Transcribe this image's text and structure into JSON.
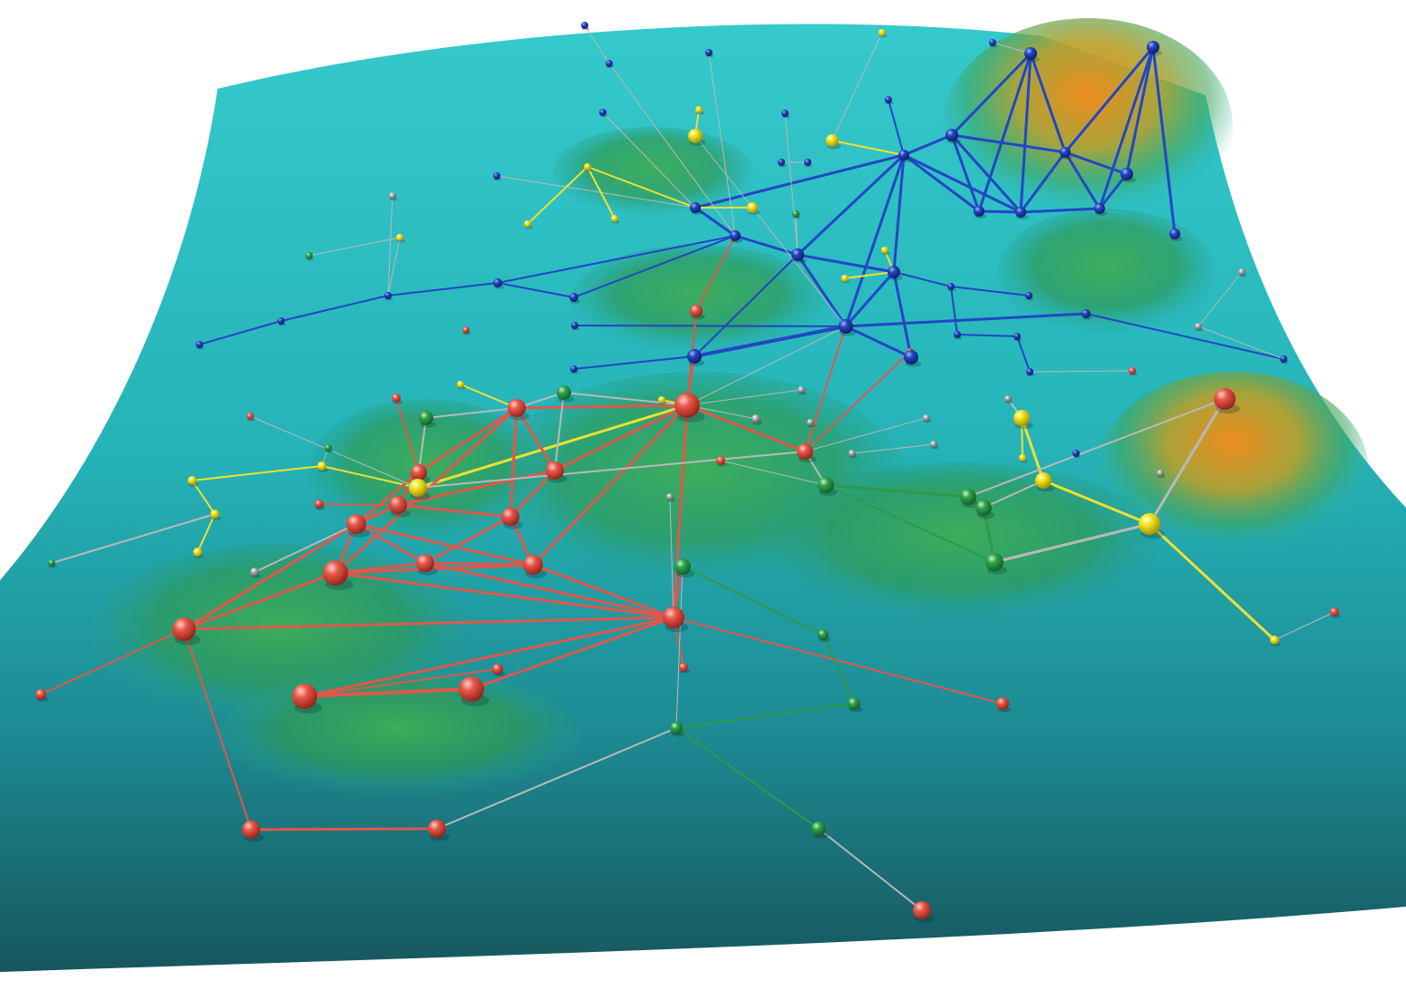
{
  "image": {
    "subject": "network-graph-over-terrain",
    "palette": {
      "background": "#ffffff",
      "surface_light": "#2ec4c8",
      "surface_mid": "#1e9ea6",
      "surface_dark": "#1a5f66",
      "hill_green": "#2f9e4e",
      "hill_orange": "#e08a1e",
      "node_red": "#d9453a",
      "node_blue": "#1f3fae",
      "node_green": "#2e9a48",
      "node_yellow": "#f2e21a",
      "node_gray": "#9aa0a6",
      "edge_red": "#e0574c",
      "edge_blue": "#2247c4",
      "edge_yellow": "#f0e030",
      "edge_gray": "#b9b9b9"
    }
  }
}
